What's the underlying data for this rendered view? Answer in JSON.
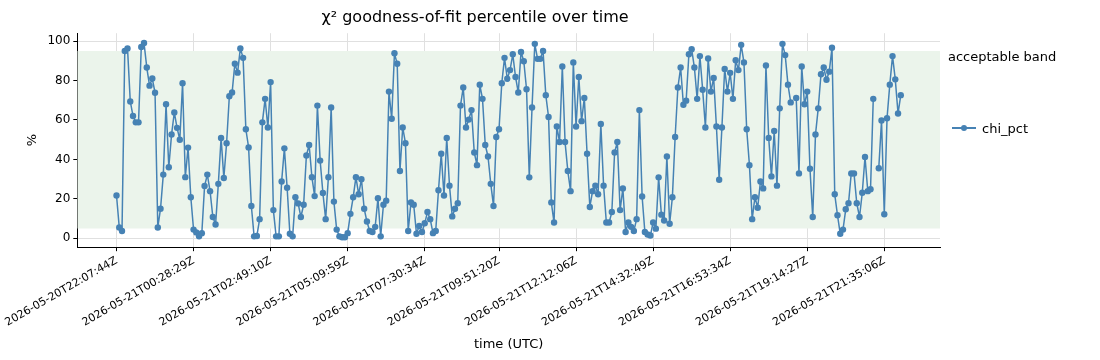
{
  "chart_data": {
    "type": "line",
    "title": "χ² goodness-of-fit percentile over time",
    "xlabel": "time (UTC)",
    "ylabel": "%",
    "categories": [
      "2026-05-20T22:07:44Z",
      null,
      null,
      null,
      null,
      null,
      null,
      null,
      null,
      null,
      null,
      null,
      null,
      null,
      null,
      null,
      null,
      null,
      null,
      null,
      null,
      null,
      null,
      null,
      null,
      null,
      null,
      null,
      "2026-05-21T00:28:29Z",
      null,
      null,
      null,
      null,
      null,
      null,
      null,
      null,
      null,
      null,
      null,
      null,
      null,
      null,
      null,
      null,
      null,
      null,
      null,
      null,
      null,
      null,
      null,
      null,
      null,
      null,
      null,
      "2026-05-21T02:49:10Z",
      null,
      null,
      null,
      null,
      null,
      null,
      null,
      null,
      null,
      null,
      null,
      null,
      null,
      null,
      null,
      null,
      null,
      null,
      null,
      null,
      null,
      null,
      null,
      null,
      null,
      null,
      null,
      "2026-05-21T05:09:59Z",
      null,
      null,
      null,
      null,
      null,
      null,
      null,
      null,
      null,
      null,
      null,
      null,
      null,
      null,
      null,
      null,
      null,
      null,
      null,
      null,
      null,
      null,
      null,
      null,
      null,
      null,
      null,
      "2026-05-21T07:30:34Z",
      null,
      null,
      null,
      null,
      null,
      null,
      null,
      null,
      null,
      null,
      null,
      null,
      null,
      null,
      null,
      null,
      null,
      null,
      null,
      null,
      null,
      null,
      null,
      null,
      null,
      null,
      "2026-05-21T09:51:20Z",
      null,
      null,
      null,
      null,
      null,
      null,
      null,
      null,
      null,
      null,
      null,
      null,
      null,
      null,
      null,
      null,
      null,
      null,
      null,
      null,
      null,
      null,
      null,
      null,
      null,
      null,
      null,
      "2026-05-21T12:12:06Z",
      null,
      null,
      null,
      null,
      null,
      null,
      null,
      null,
      null,
      null,
      null,
      null,
      null,
      null,
      null,
      null,
      null,
      null,
      null,
      null,
      null,
      null,
      null,
      null,
      null,
      null,
      null,
      "2026-05-21T14:32:49Z",
      null,
      null,
      null,
      null,
      null,
      null,
      null,
      null,
      null,
      null,
      null,
      null,
      null,
      null,
      null,
      null,
      null,
      null,
      null,
      null,
      null,
      null,
      null,
      null,
      null,
      null,
      null,
      "2026-05-21T16:53:34Z",
      null,
      null,
      null,
      null,
      null,
      null,
      null,
      null,
      null,
      null,
      null,
      null,
      null,
      null,
      null,
      null,
      null,
      null,
      null,
      null,
      null,
      null,
      null,
      null,
      null,
      null,
      null,
      "2026-05-21T19:14:27Z",
      null,
      null,
      null,
      null,
      null,
      null,
      null,
      null,
      null,
      null,
      null,
      null,
      null,
      null,
      null,
      null,
      null,
      null,
      null,
      null,
      null,
      null,
      null,
      null,
      null,
      null,
      null,
      "2026-05-21T21:35:06Z",
      null,
      null,
      null,
      null,
      null,
      null
    ],
    "series": [
      {
        "name": "chi_pct",
        "color": "#4682b4",
        "values": [
          21.7,
          5.5,
          3.7,
          95,
          96.3,
          69.4,
          62,
          58.8,
          58.8,
          97,
          99,
          86.6,
          77.4,
          81,
          73.8,
          5.5,
          15,
          32.3,
          68,
          36,
          52.6,
          63.8,
          56,
          50,
          78.6,
          31,
          46,
          20.8,
          4.4,
          3,
          1,
          2.6,
          26.5,
          32.3,
          23.9,
          10.8,
          7,
          27.6,
          50.9,
          30.6,
          48.2,
          72,
          73.9,
          88.5,
          84,
          96.3,
          91.5,
          55.3,
          46.1,
          16.4,
          1,
          1.2,
          9.7,
          58.8,
          70.7,
          56.2,
          79.2,
          14.3,
          1,
          1,
          28.8,
          45.6,
          25.6,
          2.3,
          1,
          20.8,
          17.7,
          10.8,
          17,
          42,
          47.3,
          31,
          21.4,
          67.3,
          39.4,
          23,
          9.7,
          31,
          66.3,
          18.6,
          4.4,
          1,
          0.5,
          0.5,
          2.6,
          12.4,
          20.8,
          31,
          22.3,
          30,
          15,
          8.5,
          3.7,
          3.2,
          5.8,
          20.3,
          1,
          17,
          19.1,
          74.4,
          60.6,
          93.8,
          88.5,
          34.1,
          56.2,
          48.2,
          3.7,
          18.2,
          17,
          2.3,
          6.2,
          3.2,
          7.6,
          13.3,
          9.7,
          2.6,
          3.7,
          24.4,
          42.9,
          21.7,
          50.9,
          26.7,
          11.1,
          15,
          17.8,
          67.3,
          76.5,
          56.2,
          60.2,
          65,
          43.5,
          37.1,
          77.9,
          70.7,
          47.3,
          41.5,
          27.6,
          16.4,
          51.4,
          55.3,
          78.6,
          91.5,
          80.9,
          85.3,
          93.3,
          81.8,
          73.9,
          94.5,
          89.8,
          75.6,
          30.9,
          66.3,
          98.6,
          91,
          91,
          95,
          72.6,
          61.5,
          18.2,
          8,
          56.7,
          48.8,
          87.1,
          48.8,
          34.1,
          23.9,
          89.2,
          56.7,
          81.8,
          59.4,
          71.2,
          42.9,
          15.9,
          23.9,
          26.7,
          22.3,
          58,
          26.7,
          8,
          8,
          13.3,
          43.5,
          48.8,
          14.3,
          25.3,
          3.2,
          8,
          5.8,
          3.7,
          9.7,
          65,
          21.2,
          3.2,
          1.9,
          1.4,
          8,
          4.9,
          30.9,
          12,
          9,
          41.5,
          7.4,
          20.8,
          51.4,
          76.5,
          86.6,
          67.7,
          69.8,
          93.3,
          95.9,
          86.6,
          70.7,
          92.4,
          75.3,
          56.2,
          91.2,
          74.4,
          81.3,
          56.7,
          29.7,
          56.2,
          85.9,
          74.4,
          83.9,
          70.7,
          90.3,
          85.3,
          98.1,
          89.2,
          55.3,
          37.1,
          9.7,
          20.8,
          15.5,
          28.8,
          25.3,
          87.6,
          50.9,
          31.4,
          54.4,
          26.7,
          65.9,
          98.6,
          92.9,
          77.9,
          68.9,
          null,
          71.2,
          32.9,
          87.1,
          68,
          74.4,
          35.3,
          10.8,
          52.6,
          65.9,
          83.2,
          86.6,
          80.4,
          84.5,
          96.6,
          22.3,
          11.7,
          2.3,
          4.4,
          14.7,
          17.8,
          32.9,
          32.9,
          17.8,
          10.8,
          23.1,
          41.2,
          23.9,
          24.9,
          70.7,
          null,
          35.5,
          59.7,
          12.2,
          60.9,
          77.9,
          92.4,
          80.6,
          63.3,
          72.6
        ]
      }
    ],
    "bands": [
      {
        "axis": "y",
        "from": 5,
        "to": 95,
        "label": "acceptable band",
        "color": "#ebf4eb"
      }
    ],
    "ylim": [
      -4.5,
      104
    ],
    "yticks": [
      0,
      20,
      40,
      60,
      80,
      100
    ],
    "grid": true,
    "legend": "right",
    "marker": "circle",
    "line_style": "solid"
  }
}
